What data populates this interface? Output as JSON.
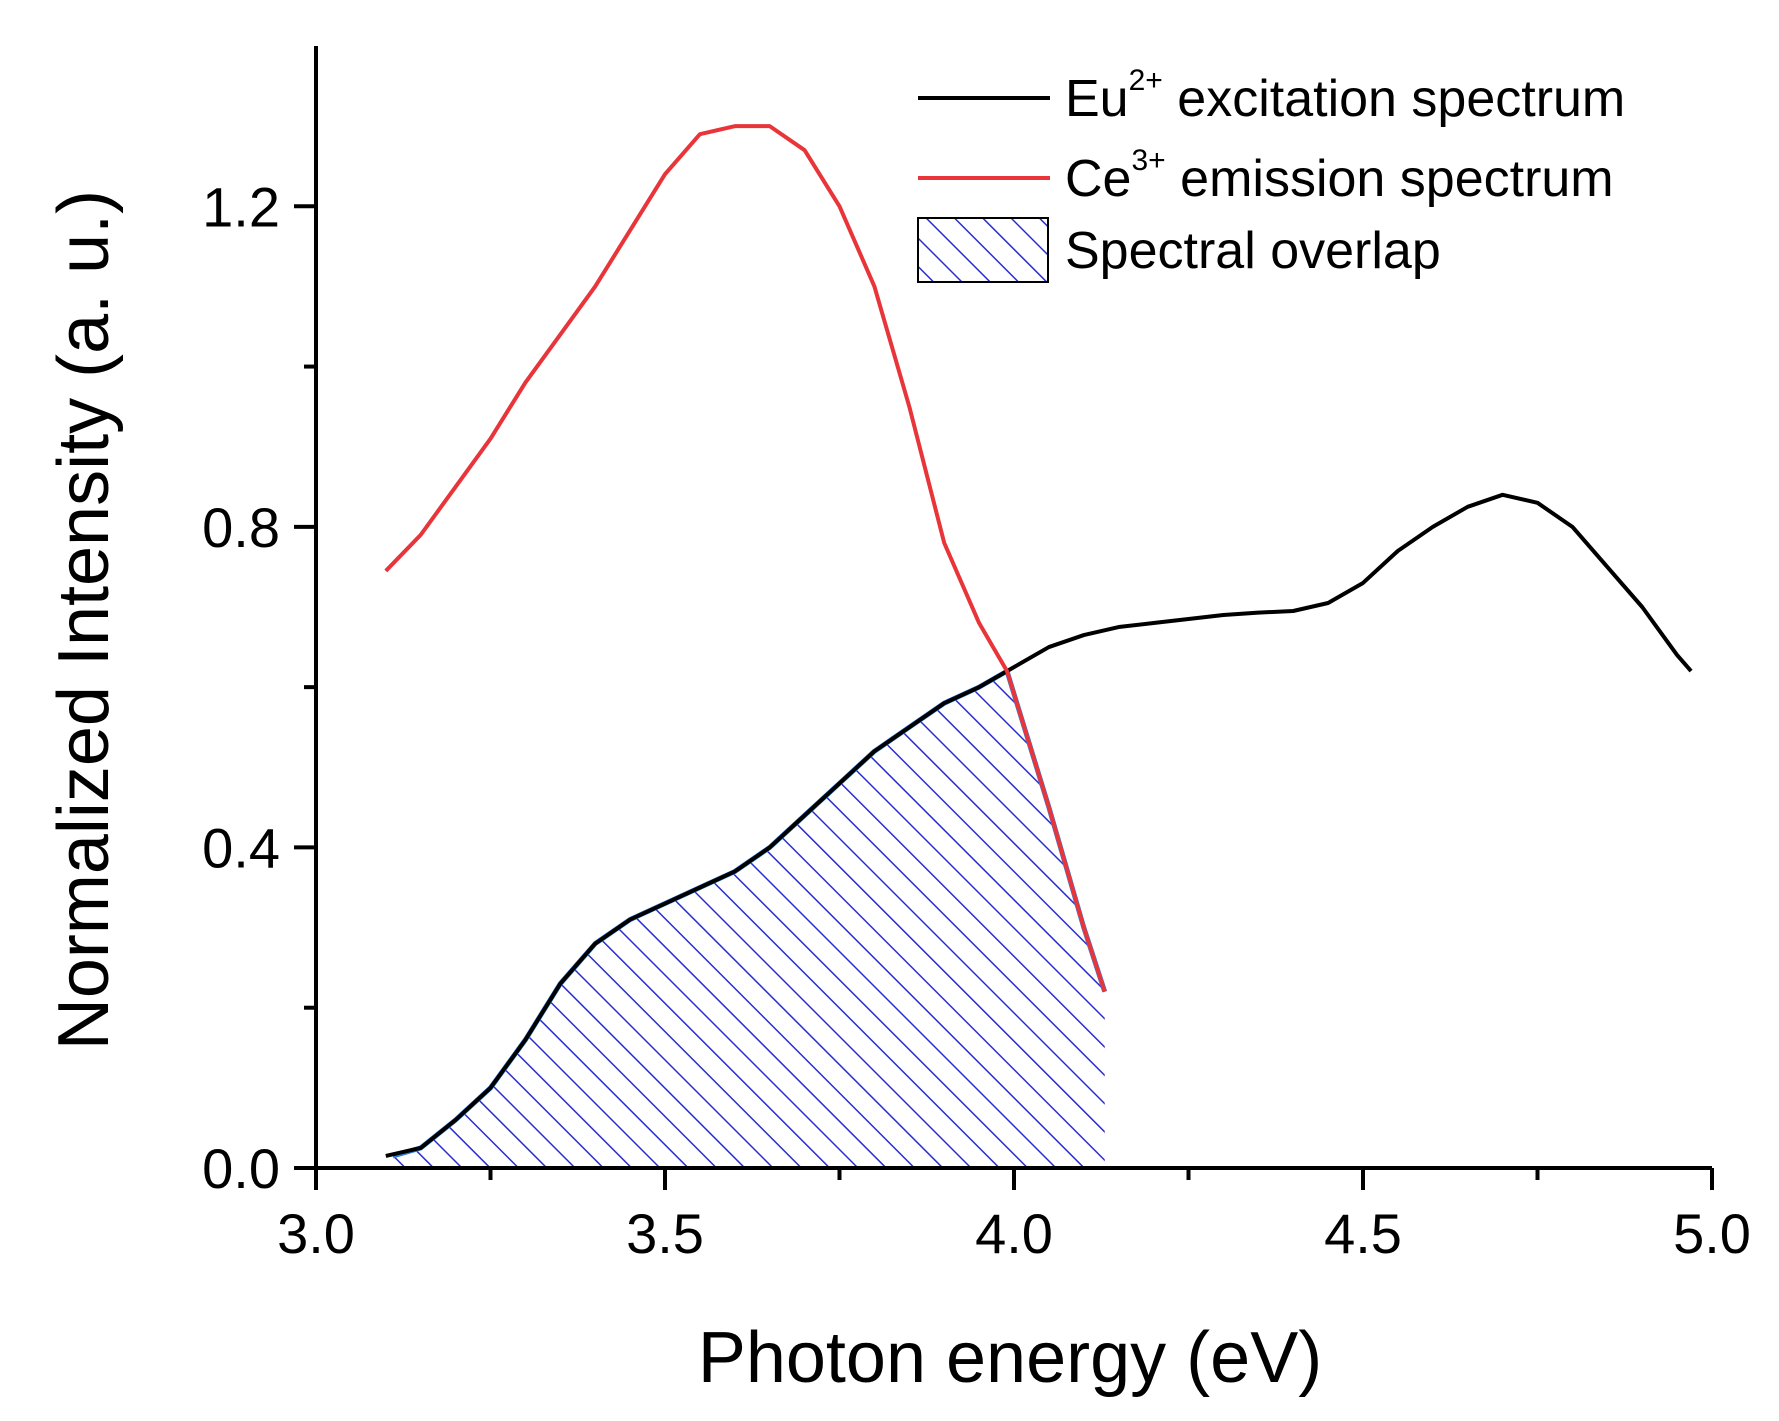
{
  "chart_data": {
    "type": "line",
    "xlabel": "Photon energy (eV)",
    "ylabel": "Normalized Intensity (a. u.)",
    "xlim": [
      3.0,
      5.0
    ],
    "ylim": [
      0.0,
      1.4
    ],
    "xticks": [
      "3.0",
      "3.5",
      "4.0",
      "4.5",
      "5.0"
    ],
    "xtick_values": [
      3.0,
      3.5,
      4.0,
      4.5,
      5.0
    ],
    "yticks": [
      "0.0",
      "0.4",
      "0.8",
      "1.2"
    ],
    "ytick_values": [
      0.0,
      0.4,
      0.8,
      1.2
    ],
    "legend_position": "top-right",
    "series": [
      {
        "name": "excitation",
        "legend": {
          "base": "Eu",
          "sup": "2+",
          "rest": " excitation spectrum"
        },
        "color": "#000000",
        "x": [
          3.1,
          3.15,
          3.2,
          3.25,
          3.3,
          3.35,
          3.4,
          3.45,
          3.5,
          3.55,
          3.6,
          3.65,
          3.7,
          3.75,
          3.8,
          3.85,
          3.9,
          3.95,
          3.99,
          4.0,
          4.05,
          4.1,
          4.15,
          4.2,
          4.25,
          4.3,
          4.35,
          4.4,
          4.45,
          4.5,
          4.55,
          4.6,
          4.65,
          4.7,
          4.75,
          4.8,
          4.85,
          4.9,
          4.95,
          4.97
        ],
        "y": [
          0.015,
          0.025,
          0.06,
          0.1,
          0.16,
          0.23,
          0.28,
          0.31,
          0.33,
          0.35,
          0.37,
          0.4,
          0.44,
          0.48,
          0.52,
          0.55,
          0.58,
          0.6,
          0.62,
          0.625,
          0.65,
          0.665,
          0.675,
          0.68,
          0.685,
          0.69,
          0.693,
          0.695,
          0.705,
          0.73,
          0.77,
          0.8,
          0.825,
          0.84,
          0.83,
          0.8,
          0.75,
          0.7,
          0.64,
          0.62
        ]
      },
      {
        "name": "emission",
        "legend": {
          "base": "Ce",
          "sup": "3+",
          "rest": " emission spectrum"
        },
        "color": "#e8353a",
        "x": [
          3.1,
          3.15,
          3.2,
          3.25,
          3.3,
          3.35,
          3.4,
          3.45,
          3.5,
          3.55,
          3.6,
          3.65,
          3.7,
          3.75,
          3.8,
          3.85,
          3.9,
          3.95,
          3.99,
          4.05,
          4.1,
          4.13
        ],
        "y": [
          0.745,
          0.79,
          0.85,
          0.91,
          0.98,
          1.04,
          1.1,
          1.17,
          1.24,
          1.29,
          1.3,
          1.3,
          1.27,
          1.2,
          1.1,
          0.95,
          0.78,
          0.68,
          0.62,
          0.45,
          0.3,
          0.22
        ]
      }
    ],
    "overlap": {
      "name": "Spectral overlap",
      "fill": "hatched",
      "color": "#2a2ed0",
      "edge_color": "#2b7fdc",
      "x": [
        3.11,
        3.15,
        3.2,
        3.25,
        3.3,
        3.35,
        3.4,
        3.45,
        3.5,
        3.55,
        3.6,
        3.65,
        3.7,
        3.75,
        3.8,
        3.85,
        3.9,
        3.95,
        3.99,
        4.05,
        4.1,
        4.13
      ],
      "y": [
        0.015,
        0.025,
        0.06,
        0.1,
        0.16,
        0.23,
        0.28,
        0.31,
        0.33,
        0.35,
        0.37,
        0.4,
        0.44,
        0.48,
        0.52,
        0.55,
        0.58,
        0.6,
        0.62,
        0.45,
        0.3,
        0.22
      ]
    }
  }
}
